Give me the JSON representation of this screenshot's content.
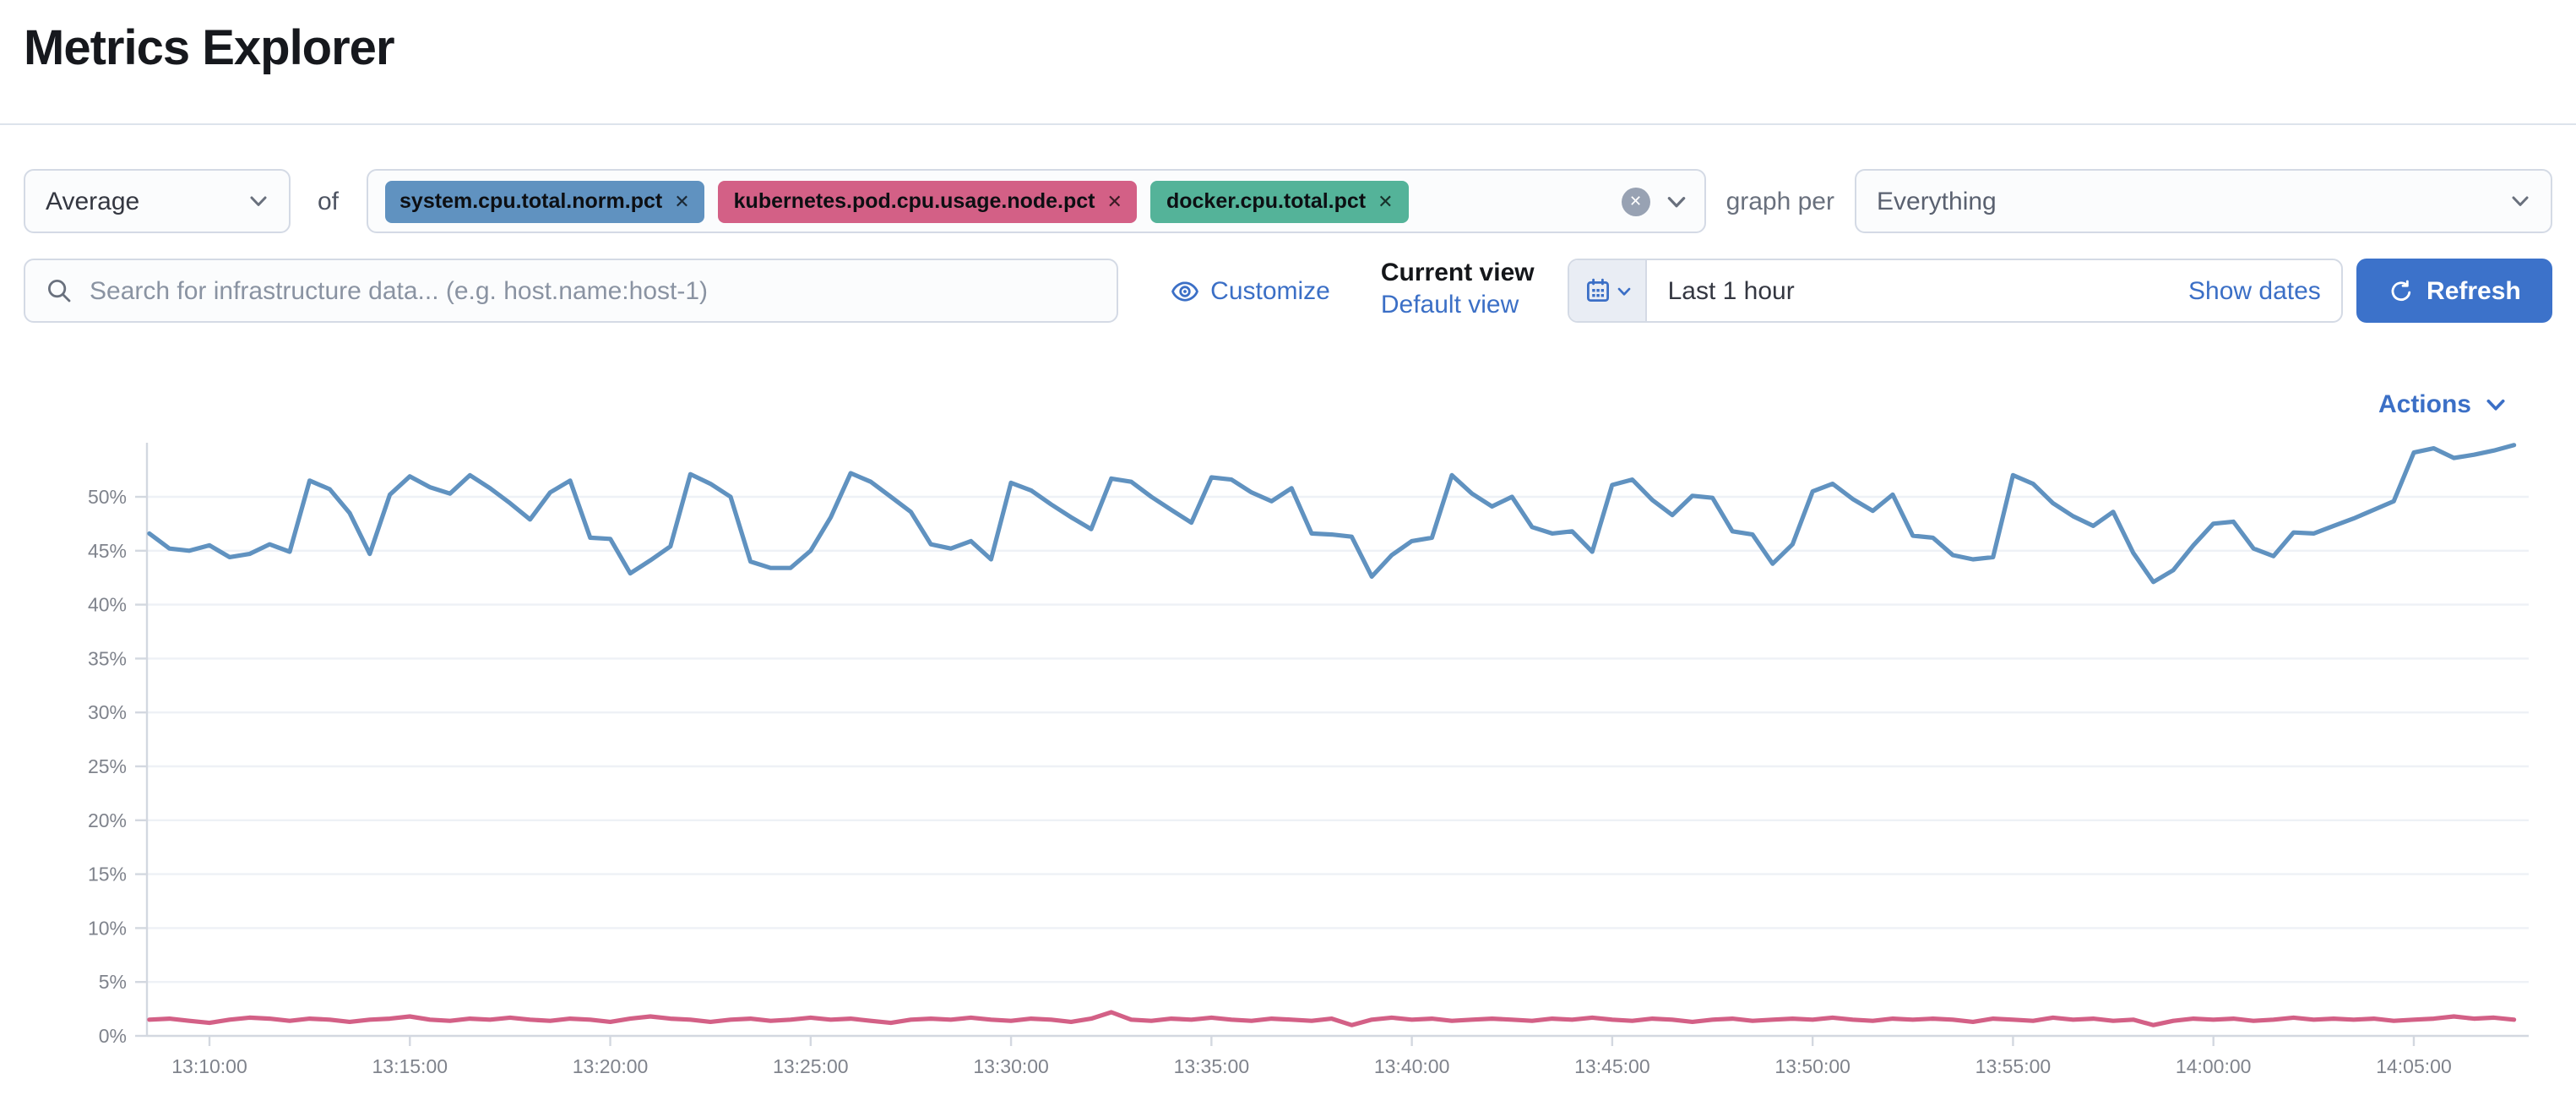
{
  "page": {
    "title": "Metrics Explorer"
  },
  "toolbar": {
    "aggregation": {
      "label": "Average"
    },
    "of_label": "of",
    "metrics": [
      {
        "label": "system.cpu.total.norm.pct",
        "color": "#6092c0"
      },
      {
        "label": "kubernetes.pod.cpu.usage.node.pct",
        "color": "#d36086"
      },
      {
        "label": "docker.cpu.total.pct",
        "color": "#54b399"
      }
    ],
    "graph_per_label": "graph per",
    "group_by": {
      "value": "Everything"
    }
  },
  "searchbar": {
    "placeholder": "Search for infrastructure data... (e.g. host.name:host-1)"
  },
  "view_controls": {
    "customize_label": "Customize",
    "current_view_label": "Current view",
    "default_view_label": "Default view"
  },
  "datepicker": {
    "duration_label": "Last 1 hour",
    "show_dates_label": "Show dates",
    "refresh_label": "Refresh"
  },
  "actions": {
    "label": "Actions"
  },
  "icons": {
    "search": "magnifier",
    "customize": "eye",
    "date": "calendar",
    "refresh": "circular-arrow",
    "clear_all": "cross-in-circle",
    "remove_badge": "cross",
    "dropdown": "chevron-down"
  },
  "colors": {
    "primary": "#3c72ca",
    "link": "#3b6fc6",
    "series_blue": "#6092c0",
    "series_pink": "#d36086",
    "badge_green": "#54b399",
    "text": "#343741",
    "muted": "#69707d",
    "border": "#d4dae5",
    "axis_label": "#7f838c"
  },
  "chart_data": {
    "type": "line",
    "title": "",
    "xlabel": "",
    "ylabel": "",
    "y_unit": "%",
    "ylim": [
      0,
      55
    ],
    "yticks": [
      0,
      5,
      10,
      15,
      20,
      25,
      30,
      35,
      40,
      45,
      50
    ],
    "x_tick_labels": [
      "13:10:00",
      "13:15:00",
      "13:20:00",
      "13:25:00",
      "13:30:00",
      "13:35:00",
      "13:40:00",
      "13:45:00",
      "13:50:00",
      "13:55:00",
      "14:00:00",
      "14:05:00"
    ],
    "x_tick_interval_min": 5,
    "x_start_offset_min": -1.5,
    "x_step_min": 0.5,
    "grid": "horizontal",
    "legend_position": "none",
    "series": [
      {
        "name": "system.cpu.total.norm.pct (avg)",
        "color": "#6092c0",
        "values": [
          46.6,
          45.2,
          45.0,
          45.5,
          44.4,
          44.7,
          45.6,
          44.9,
          51.5,
          50.7,
          48.5,
          44.7,
          50.2,
          51.9,
          50.9,
          50.3,
          52.0,
          50.8,
          49.4,
          47.9,
          50.4,
          51.5,
          46.2,
          46.1,
          42.9,
          44.1,
          45.4,
          52.1,
          51.2,
          50.0,
          44.0,
          43.4,
          43.4,
          45.0,
          48.1,
          52.2,
          51.4,
          50.0,
          48.6,
          45.6,
          45.2,
          45.9,
          44.2,
          51.3,
          50.6,
          49.3,
          48.1,
          47.0,
          51.7,
          51.4,
          50.0,
          48.8,
          47.6,
          51.8,
          51.6,
          50.4,
          49.6,
          50.8,
          46.6,
          46.5,
          46.3,
          42.6,
          44.6,
          45.9,
          46.2,
          52.0,
          50.3,
          49.1,
          50.0,
          47.2,
          46.6,
          46.8,
          44.9,
          51.1,
          51.6,
          49.7,
          48.3,
          50.1,
          49.9,
          46.8,
          46.5,
          43.8,
          45.6,
          50.5,
          51.2,
          49.8,
          48.7,
          50.2,
          46.4,
          46.2,
          44.6,
          44.2,
          44.4,
          52.0,
          51.2,
          49.4,
          48.2,
          47.3,
          48.6,
          44.8,
          42.1,
          43.2,
          45.5,
          47.5,
          47.7,
          45.2,
          44.5,
          46.7,
          46.6,
          47.3,
          48.0,
          48.8,
          49.6,
          54.1,
          54.5,
          53.6,
          53.9,
          54.3,
          54.8
        ]
      },
      {
        "name": "kubernetes.pod.cpu.usage.node.pct (avg)",
        "color": "#d36086",
        "values": [
          1.5,
          1.6,
          1.4,
          1.2,
          1.5,
          1.7,
          1.6,
          1.4,
          1.6,
          1.5,
          1.3,
          1.5,
          1.6,
          1.8,
          1.5,
          1.4,
          1.6,
          1.5,
          1.7,
          1.5,
          1.4,
          1.6,
          1.5,
          1.3,
          1.6,
          1.8,
          1.6,
          1.5,
          1.3,
          1.5,
          1.6,
          1.4,
          1.5,
          1.7,
          1.5,
          1.6,
          1.4,
          1.2,
          1.5,
          1.6,
          1.5,
          1.7,
          1.5,
          1.4,
          1.6,
          1.5,
          1.3,
          1.6,
          2.2,
          1.5,
          1.4,
          1.6,
          1.5,
          1.7,
          1.5,
          1.4,
          1.6,
          1.5,
          1.4,
          1.6,
          1.0,
          1.5,
          1.7,
          1.5,
          1.6,
          1.4,
          1.5,
          1.6,
          1.5,
          1.4,
          1.6,
          1.5,
          1.7,
          1.5,
          1.4,
          1.6,
          1.5,
          1.3,
          1.5,
          1.6,
          1.4,
          1.5,
          1.6,
          1.5,
          1.7,
          1.5,
          1.4,
          1.6,
          1.5,
          1.6,
          1.5,
          1.3,
          1.6,
          1.5,
          1.4,
          1.7,
          1.5,
          1.6,
          1.4,
          1.5,
          1.0,
          1.4,
          1.6,
          1.5,
          1.6,
          1.4,
          1.5,
          1.7,
          1.5,
          1.6,
          1.5,
          1.6,
          1.4,
          1.5,
          1.6,
          1.8,
          1.6,
          1.7,
          1.5
        ]
      }
    ]
  }
}
